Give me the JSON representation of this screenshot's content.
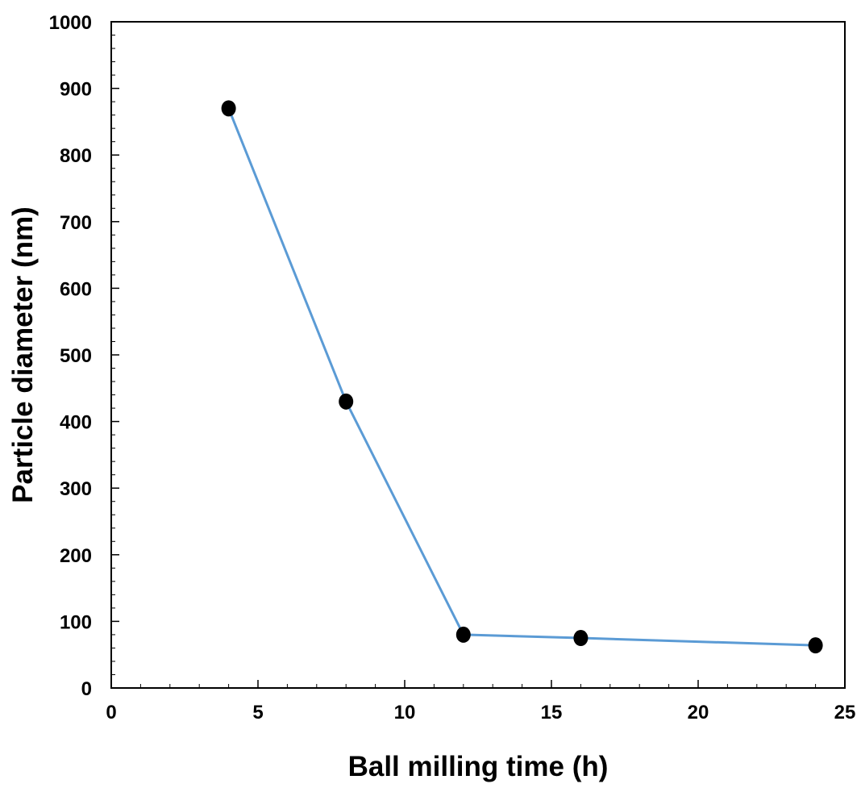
{
  "chart_data": {
    "type": "line",
    "title": "",
    "xlabel": "Ball milling time (h)",
    "ylabel": "Particle diameter (nm)",
    "xlim": [
      0,
      25
    ],
    "ylim": [
      0,
      1000
    ],
    "x_ticks": [
      0,
      5,
      10,
      15,
      20,
      25
    ],
    "x_tick_labels": [
      "0",
      "5",
      "10",
      "15",
      "20",
      "25"
    ],
    "y_ticks": [
      0,
      100,
      200,
      300,
      400,
      500,
      600,
      700,
      800,
      900,
      1000
    ],
    "y_tick_labels": [
      "0",
      "100",
      "200",
      "300",
      "400",
      "500",
      "600",
      "700",
      "800",
      "900",
      "1000"
    ],
    "x_minor_step": 1,
    "y_minor_step": 20,
    "grid": false,
    "legend": "none",
    "series": [
      {
        "x": [
          4,
          8,
          12,
          16,
          24
        ],
        "y": [
          870,
          430,
          80,
          75,
          64
        ],
        "line_color": "#5b9bd5",
        "marker_color": "#000000",
        "marker": "circle"
      }
    ]
  }
}
